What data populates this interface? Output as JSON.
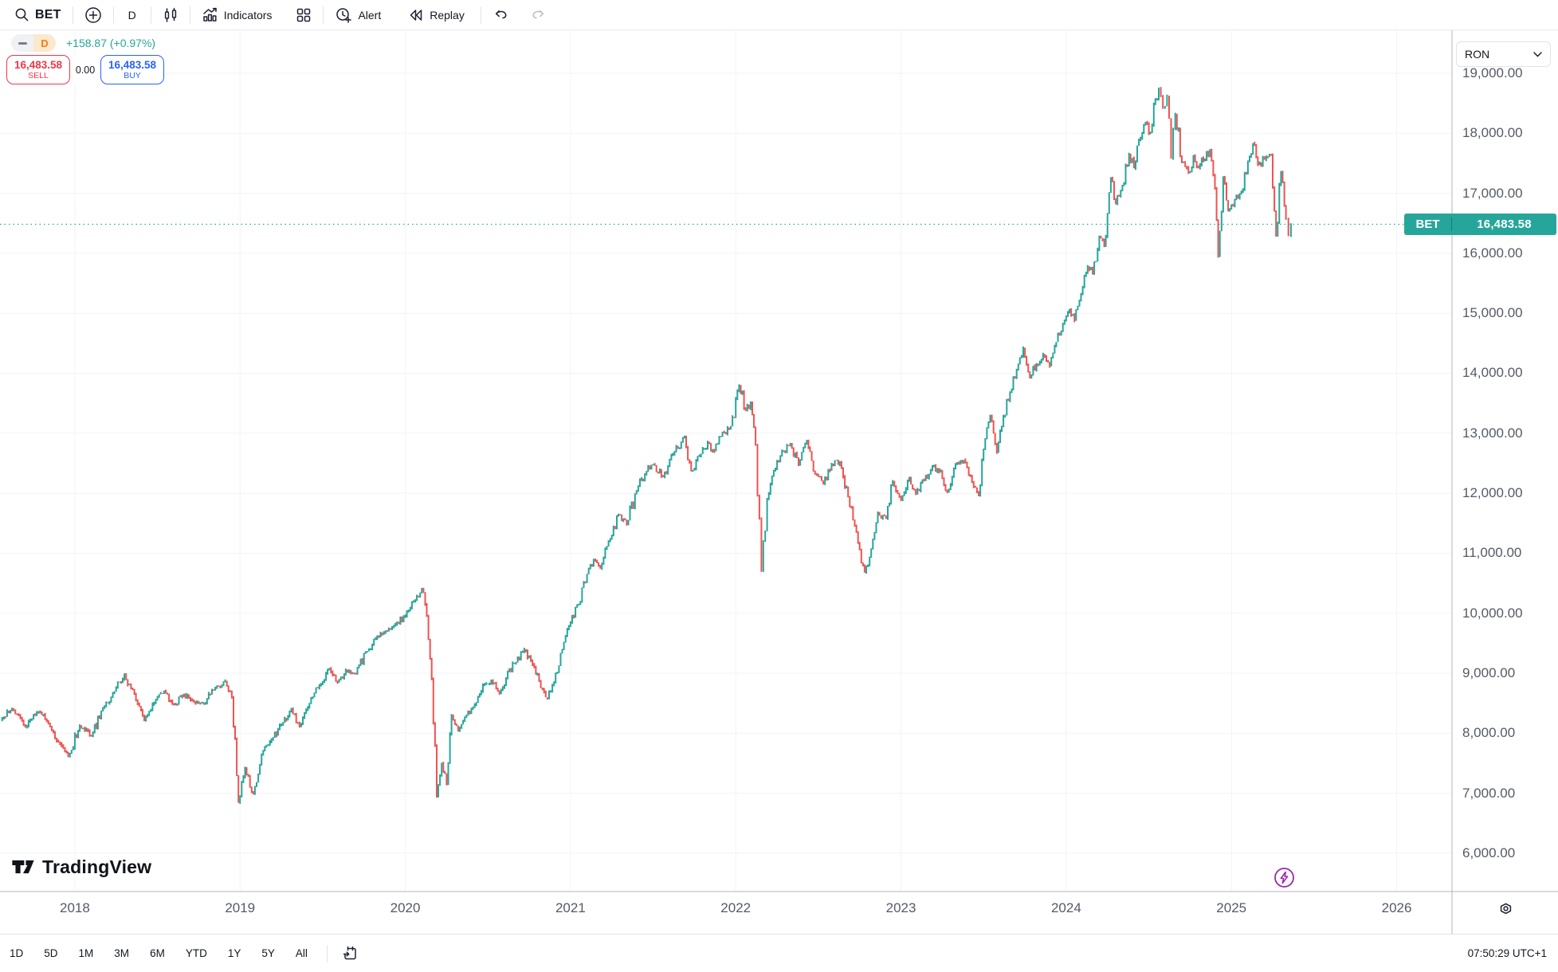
{
  "toolbar": {
    "symbol": "BET",
    "interval": "D",
    "indicators_label": "Indicators",
    "alert_label": "Alert",
    "replay_label": "Replay"
  },
  "legend": {
    "interval_badge": "D",
    "change_text": "+158.87 (+0.97%)"
  },
  "order_panel": {
    "sell_price": "16,483.58",
    "sell_label": "SELL",
    "spread": "0.00",
    "buy_price": "16,483.58",
    "buy_label": "BUY"
  },
  "price_axis": {
    "currency": "RON",
    "tag_symbol": "BET",
    "tag_price": "16,483.58"
  },
  "watermark": {
    "label": "TradingView"
  },
  "footer": {
    "ranges": [
      "1D",
      "5D",
      "1M",
      "3M",
      "6M",
      "YTD",
      "1Y",
      "5Y",
      "All"
    ],
    "clock": "07:50:29 UTC+1"
  },
  "colors": {
    "up": "#26a69a",
    "down": "#ef5350",
    "grid": "#f0f3fa",
    "axis_text": "#555a66",
    "tag_bg": "#26a69a",
    "sell": "#f23645",
    "buy": "#2962ff",
    "interval_badge_bg": "#fce8cc",
    "interval_badge_fg": "#f57b15",
    "flash": "#9c27b0"
  },
  "chart_data": {
    "type": "candlestick",
    "symbol": "BET",
    "currency": "RON",
    "last_price": 16483.58,
    "change_abs": 158.87,
    "change_pct": 0.97,
    "x_range": [
      2017.547,
      2026.335
    ],
    "y_range": [
      5361,
      19717
    ],
    "y_ticks": [
      6000,
      7000,
      8000,
      9000,
      10000,
      11000,
      12000,
      13000,
      14000,
      15000,
      16000,
      17000,
      18000,
      19000
    ],
    "x_ticks": [
      2018,
      2019,
      2020,
      2021,
      2022,
      2023,
      2024,
      2025,
      2026
    ],
    "grid": true,
    "anchors": [
      [
        2017.55,
        8200
      ],
      [
        2017.62,
        8420
      ],
      [
        2017.7,
        8100
      ],
      [
        2017.78,
        8360
      ],
      [
        2017.84,
        8150
      ],
      [
        2017.9,
        7850
      ],
      [
        2017.96,
        7620
      ],
      [
        2018.03,
        8120
      ],
      [
        2018.1,
        7950
      ],
      [
        2018.17,
        8420
      ],
      [
        2018.24,
        8700
      ],
      [
        2018.3,
        8980
      ],
      [
        2018.36,
        8650
      ],
      [
        2018.42,
        8210
      ],
      [
        2018.48,
        8500
      ],
      [
        2018.54,
        8700
      ],
      [
        2018.6,
        8470
      ],
      [
        2018.66,
        8640
      ],
      [
        2018.72,
        8520
      ],
      [
        2018.78,
        8480
      ],
      [
        2018.85,
        8760
      ],
      [
        2018.91,
        8870
      ],
      [
        2018.95,
        8600
      ],
      [
        2018.99,
        6850
      ],
      [
        2019.03,
        7420
      ],
      [
        2019.08,
        6980
      ],
      [
        2019.13,
        7650
      ],
      [
        2019.19,
        7900
      ],
      [
        2019.25,
        8150
      ],
      [
        2019.31,
        8400
      ],
      [
        2019.36,
        8120
      ],
      [
        2019.42,
        8500
      ],
      [
        2019.48,
        8800
      ],
      [
        2019.54,
        9080
      ],
      [
        2019.59,
        8850
      ],
      [
        2019.64,
        9050
      ],
      [
        2019.7,
        8980
      ],
      [
        2019.76,
        9350
      ],
      [
        2019.82,
        9580
      ],
      [
        2019.88,
        9700
      ],
      [
        2019.94,
        9820
      ],
      [
        2020.0,
        9950
      ],
      [
        2020.05,
        10200
      ],
      [
        2020.1,
        10420
      ],
      [
        2020.13,
        9950
      ],
      [
        2020.16,
        8900
      ],
      [
        2020.19,
        6950
      ],
      [
        2020.22,
        7500
      ],
      [
        2020.25,
        7150
      ],
      [
        2020.28,
        8300
      ],
      [
        2020.32,
        8050
      ],
      [
        2020.37,
        8300
      ],
      [
        2020.42,
        8480
      ],
      [
        2020.47,
        8800
      ],
      [
        2020.52,
        8880
      ],
      [
        2020.57,
        8660
      ],
      [
        2020.62,
        9020
      ],
      [
        2020.67,
        9180
      ],
      [
        2020.72,
        9400
      ],
      [
        2020.77,
        9150
      ],
      [
        2020.82,
        8750
      ],
      [
        2020.86,
        8580
      ],
      [
        2020.9,
        8850
      ],
      [
        2020.95,
        9400
      ],
      [
        2021.0,
        9850
      ],
      [
        2021.05,
        10150
      ],
      [
        2021.1,
        10650
      ],
      [
        2021.14,
        10900
      ],
      [
        2021.18,
        10750
      ],
      [
        2021.24,
        11250
      ],
      [
        2021.29,
        11650
      ],
      [
        2021.34,
        11480
      ],
      [
        2021.4,
        12050
      ],
      [
        2021.45,
        12320
      ],
      [
        2021.5,
        12480
      ],
      [
        2021.56,
        12280
      ],
      [
        2021.62,
        12650
      ],
      [
        2021.69,
        12950
      ],
      [
        2021.73,
        12380
      ],
      [
        2021.78,
        12620
      ],
      [
        2021.83,
        12850
      ],
      [
        2021.87,
        12700
      ],
      [
        2021.92,
        13020
      ],
      [
        2021.97,
        13120
      ],
      [
        2022.02,
        13800
      ],
      [
        2022.06,
        13380
      ],
      [
        2022.09,
        13520
      ],
      [
        2022.12,
        12800
      ],
      [
        2022.155,
        10700
      ],
      [
        2022.19,
        11900
      ],
      [
        2022.23,
        12380
      ],
      [
        2022.28,
        12700
      ],
      [
        2022.33,
        12820
      ],
      [
        2022.38,
        12480
      ],
      [
        2022.43,
        12880
      ],
      [
        2022.48,
        12320
      ],
      [
        2022.53,
        12150
      ],
      [
        2022.58,
        12480
      ],
      [
        2022.63,
        12520
      ],
      [
        2022.68,
        11950
      ],
      [
        2022.73,
        11350
      ],
      [
        2022.78,
        10680
      ],
      [
        2022.82,
        11080
      ],
      [
        2022.86,
        11680
      ],
      [
        2022.91,
        11580
      ],
      [
        2022.95,
        12200
      ],
      [
        2023.0,
        11880
      ],
      [
        2023.05,
        12260
      ],
      [
        2023.09,
        11980
      ],
      [
        2023.14,
        12220
      ],
      [
        2023.19,
        12460
      ],
      [
        2023.24,
        12380
      ],
      [
        2023.28,
        12020
      ],
      [
        2023.33,
        12480
      ],
      [
        2023.38,
        12550
      ],
      [
        2023.43,
        12180
      ],
      [
        2023.47,
        11960
      ],
      [
        2023.51,
        12900
      ],
      [
        2023.54,
        13300
      ],
      [
        2023.58,
        12680
      ],
      [
        2023.62,
        13280
      ],
      [
        2023.66,
        13680
      ],
      [
        2023.7,
        14050
      ],
      [
        2023.74,
        14420
      ],
      [
        2023.78,
        13920
      ],
      [
        2023.82,
        14150
      ],
      [
        2023.86,
        14320
      ],
      [
        2023.9,
        14120
      ],
      [
        2023.94,
        14520
      ],
      [
        2023.98,
        14820
      ],
      [
        2024.02,
        15060
      ],
      [
        2024.05,
        14880
      ],
      [
        2024.09,
        15320
      ],
      [
        2024.13,
        15780
      ],
      [
        2024.16,
        15660
      ],
      [
        2024.2,
        16280
      ],
      [
        2024.23,
        16120
      ],
      [
        2024.27,
        17250
      ],
      [
        2024.3,
        16820
      ],
      [
        2024.34,
        17120
      ],
      [
        2024.38,
        17650
      ],
      [
        2024.41,
        17420
      ],
      [
        2024.45,
        17920
      ],
      [
        2024.48,
        18180
      ],
      [
        2024.51,
        18020
      ],
      [
        2024.54,
        18560
      ],
      [
        2024.56,
        18760
      ],
      [
        2024.585,
        18420
      ],
      [
        2024.61,
        18620
      ],
      [
        2024.635,
        17580
      ],
      [
        2024.66,
        18320
      ],
      [
        2024.7,
        17520
      ],
      [
        2024.74,
        17340
      ],
      [
        2024.77,
        17620
      ],
      [
        2024.8,
        17420
      ],
      [
        2024.84,
        17560
      ],
      [
        2024.87,
        17720
      ],
      [
        2024.9,
        17080
      ],
      [
        2024.92,
        15950
      ],
      [
        2024.95,
        17260
      ],
      [
        2024.98,
        16720
      ],
      [
        2025.02,
        16900
      ],
      [
        2025.06,
        17020
      ],
      [
        2025.1,
        17520
      ],
      [
        2025.13,
        17830
      ],
      [
        2025.16,
        17480
      ],
      [
        2025.2,
        17560
      ],
      [
        2025.24,
        17640
      ],
      [
        2025.27,
        16280
      ],
      [
        2025.3,
        17360
      ],
      [
        2025.33,
        16580
      ],
      [
        2025.345,
        16300
      ],
      [
        2025.36,
        16483.58
      ]
    ]
  }
}
